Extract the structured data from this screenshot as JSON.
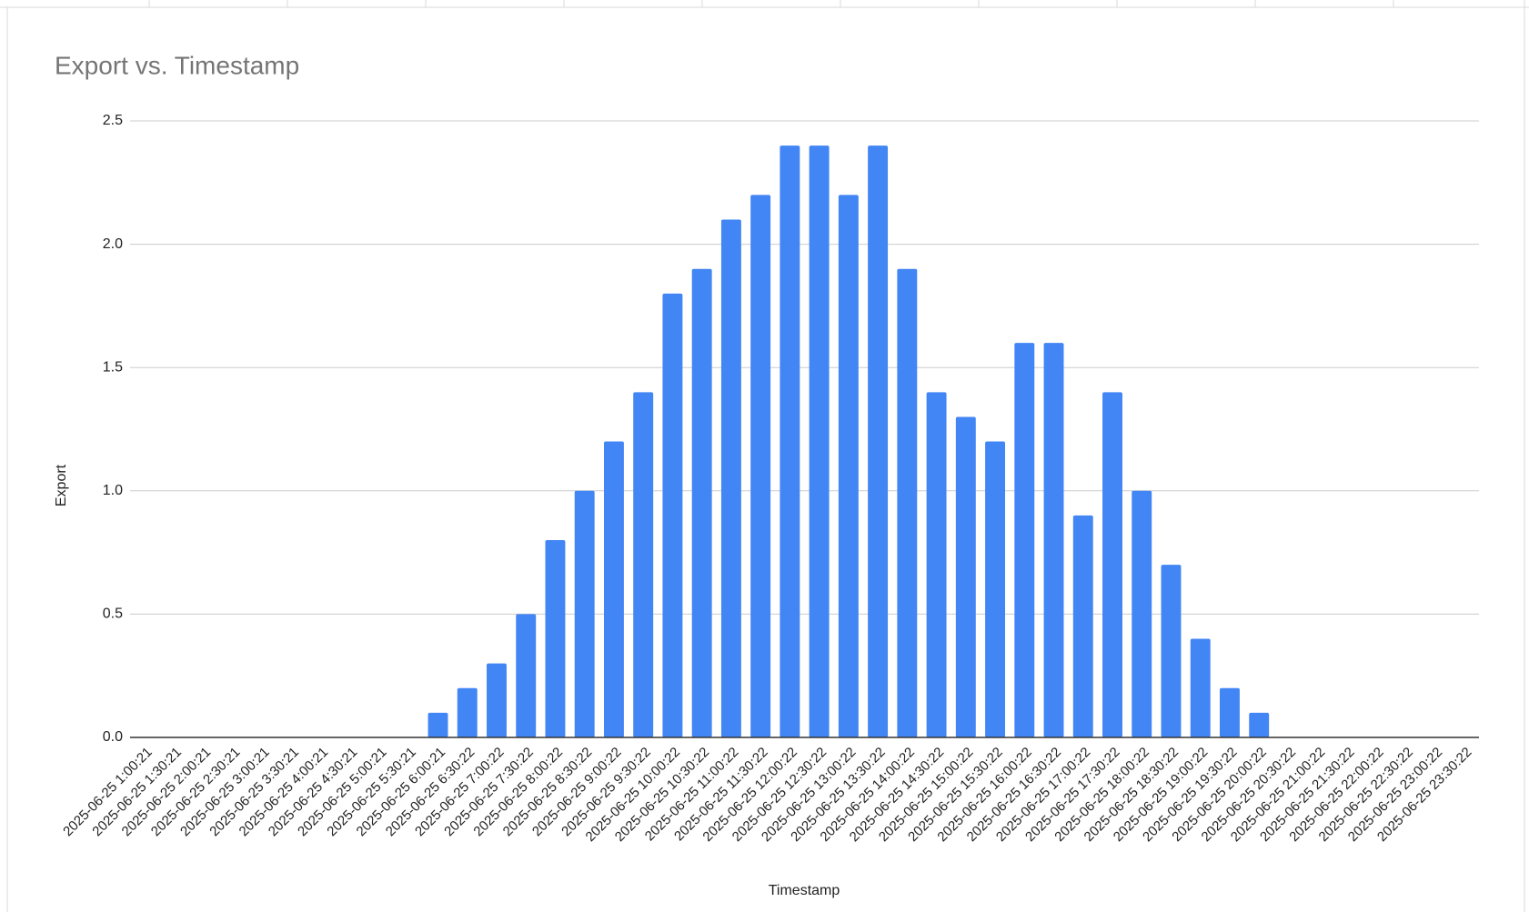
{
  "chart_data": {
    "type": "bar",
    "title": "Export vs. Timestamp",
    "x_label": "Timestamp",
    "y_label": "Export",
    "categories": [
      "2025-06-25 1:00:21",
      "2025-06-25 1:30:21",
      "2025-06-25 2:00:21",
      "2025-06-25 2:30:21",
      "2025-06-25 3:00:21",
      "2025-06-25 3:30:21",
      "2025-06-25 4:00:21",
      "2025-06-25 4:30:21",
      "2025-06-25 5:00:21",
      "2025-06-25 5:30:21",
      "2025-06-25 6:00:21",
      "2025-06-25 6:30:22",
      "2025-06-25 7:00:22",
      "2025-06-25 7:30:22",
      "2025-06-25 8:00:22",
      "2025-06-25 8:30:22",
      "2025-06-25 9:00:22",
      "2025-06-25 9:30:22",
      "2025-06-25 10:00:22",
      "2025-06-25 10:30:22",
      "2025-06-25 11:00:22",
      "2025-06-25 11:30:22",
      "2025-06-25 12:00:22",
      "2025-06-25 12:30:22",
      "2025-06-25 13:00:22",
      "2025-06-25 13:30:22",
      "2025-06-25 14:00:22",
      "2025-06-25 14:30:22",
      "2025-06-25 15:00:22",
      "2025-06-25 15:30:22",
      "2025-06-25 16:00:22",
      "2025-06-25 16:30:22",
      "2025-06-25 17:00:22",
      "2025-06-25 17:30:22",
      "2025-06-25 18:00:22",
      "2025-06-25 18:30:22",
      "2025-06-25 19:00:22",
      "2025-06-25 19:30:22",
      "2025-06-25 20:00:22",
      "2025-06-25 20:30:22",
      "2025-06-25 21:00:22",
      "2025-06-25 21:30:22",
      "2025-06-25 22:00:22",
      "2025-06-25 22:30:22",
      "2025-06-25 23:00:22",
      "2025-06-25 23:30:22"
    ],
    "values": [
      0,
      0,
      0,
      0,
      0,
      0,
      0,
      0,
      0,
      0,
      0.1,
      0.2,
      0.3,
      0.5,
      0.8,
      1.0,
      1.2,
      1.4,
      1.8,
      1.9,
      2.1,
      2.2,
      2.4,
      2.4,
      2.2,
      2.4,
      1.9,
      1.4,
      1.3,
      1.2,
      1.6,
      1.6,
      0.9,
      1.4,
      1.0,
      0.7,
      0.4,
      0.2,
      0.1,
      0,
      0,
      0,
      0,
      0,
      0,
      0
    ],
    "color": "#4285f4",
    "ylim": [
      0,
      2.5
    ],
    "yticks": [
      {
        "value": 0,
        "label": "0.0"
      },
      0.5,
      {
        "value": 1,
        "label": "1.0"
      },
      1.5,
      {
        "value": 2,
        "label": "2.0"
      },
      2.5
    ],
    "grid": true
  }
}
